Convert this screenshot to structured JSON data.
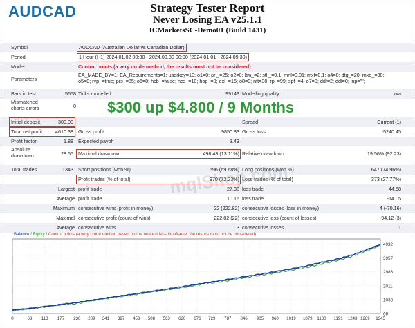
{
  "header": {
    "symbol_logo": "AUDCAD",
    "title": "Strategy Tester Report",
    "ea_name": "Never Losing EA v25.1.1",
    "server": "ICMarketsSC-Demo01 (Build 1431)"
  },
  "settings": {
    "symbol_label": "Symbol",
    "symbol_value": "AUDCAD (Australian Dollar vs Canadian Dollar)",
    "period_label": "Period",
    "period_value": "1 Hour (H1) 2024.01.02 00:00 - 2024.09.30 00:00 (2024.01.01 - 2024.09.30)",
    "model_label": "Model",
    "model_value": "Control points (a very crude method, the results must not be considered)",
    "parameters_label": "Parameters",
    "parameters_line1": "EA_MADE_BY=1; EA_Requirements=1; userkey=10; o1=0; pri_=25; o2=0; ltm_=2; stll_=0.1; mnl=0.01; mxl=0.1; o4=0; dtg_=20; mxo_=30;",
    "parameters_line2": "o5=0; rvp_=true; prs_=85; o6=0; hcb_=false; hcs_=10; hop_=0; exl_=15; o8=0; nft=30; rp_=99; spf_=4; o7=0; ddf=2; ddl=0; inp=\"\";"
  },
  "bars": {
    "bars_label": "Bars in test",
    "bars_value": "5658",
    "ticks_label": "Ticks modelled",
    "ticks_value": "99143",
    "quality_label": "Modelling quality",
    "quality_value": "n/a",
    "mismatched_label1": "Mismatched",
    "mismatched_label2": "charts errors",
    "mismatched_value": "0"
  },
  "headline": "$300 up $4.800 / 9 Months",
  "results": {
    "initial_deposit_label": "Initial deposit",
    "initial_deposit_value": "300.00",
    "spread_label": "Spread",
    "spread_value": "Current (1)",
    "total_net_profit_label": "Total net profit",
    "total_net_profit_value": "4610.38",
    "gross_profit_label": "Gross profit",
    "gross_profit_value": "9850.83",
    "gross_loss_label": "Gross loss",
    "gross_loss_value": "-5240.45",
    "profit_factor_label": "Profit factor",
    "profit_factor_value": "1.88",
    "expected_payoff_label": "Expected payoff",
    "expected_payoff_value": "3.43",
    "absolute_dd_label1": "Absolute",
    "absolute_dd_label2": "drawdown",
    "absolute_dd_value": "28.55",
    "maximal_dd_label": "Maximal drawdown",
    "maximal_dd_value": "498.43 (13.11%)",
    "relative_dd_label": "Relative drawdown",
    "relative_dd_value": "19.56% (92.23)",
    "total_trades_label": "Total trades",
    "total_trades_value": "1343",
    "short_label": "Short positions (won %)",
    "short_value": "696 (69.68%)",
    "long_label": "Long positions (won %)",
    "long_value": "647 (74.96%)",
    "profit_trades_label": "Profit trades (% of total)",
    "profit_trades_value": "970 (72.23%)",
    "loss_trades_label": "Loss trades (% of total)",
    "loss_trades_value": "373 (27.77%)",
    "largest_label": "Largest",
    "largest_profit_label": "profit trade",
    "largest_profit_value": "27.38",
    "largest_loss_label": "loss trade",
    "largest_loss_value": "-44.58",
    "average_label": "Average",
    "average_profit_label": "profit trade",
    "average_profit_value": "10.16",
    "average_loss_label": "loss trade",
    "average_loss_value": "-14.05",
    "maximum_label": "Maximum",
    "max_cons_wins_label": "consecutive wins (profit in money)",
    "max_cons_wins_value": "22 (222.82)",
    "max_cons_losses_label": "consecutive losses (loss in money)",
    "max_cons_losses_value": "4 (-70.16)",
    "maximal_label": "Maximal",
    "maximal_cons_profit_label": "consecutive profit (count of wins)",
    "maximal_cons_profit_value": "222.82 (22)",
    "maximal_cons_loss_label": "consecutive loss (count of losses)",
    "maximal_cons_loss_value": "-94.12 (3)",
    "avg_label": "Average",
    "avg_cons_wins_label": "consecutive wins",
    "avg_cons_wins_value": "3",
    "avg_cons_losses_label": "consecutive losses",
    "avg_cons_losses_value": "1"
  },
  "watermark": "mqlShop.com",
  "legend": {
    "balance": "Balance",
    "equity": "Equity",
    "control": "Control points (a very crude method based on the nearest less timeframe, the results must not be considered)"
  },
  "colors": {
    "balance": "#1f3fa0",
    "equity": "#2aa02a",
    "highlight_box": "#c0392b",
    "headline": "#2e9b3a",
    "logo": "#1b6fa8"
  },
  "chart_data": {
    "type": "line",
    "xlabel": "",
    "ylabel": "",
    "x_ticks": [
      "0",
      "63",
      "118",
      "177",
      "236",
      "289",
      "341",
      "397",
      "453",
      "508",
      "563",
      "620",
      "676",
      "729",
      "787",
      "846",
      "905",
      "960",
      "1019",
      "1079",
      "1130",
      "1191",
      "1243",
      "1289",
      "1345"
    ],
    "y_ticks": [
      "4932",
      "3957",
      "2986",
      "2011",
      "1038",
      "66"
    ],
    "ylim": [
      66,
      5300
    ],
    "xlim": [
      0,
      1345
    ],
    "series": [
      {
        "name": "Balance",
        "x": [
          0,
          63,
          118,
          177,
          236,
          289,
          341,
          397,
          453,
          508,
          563,
          620,
          676,
          729,
          787,
          846,
          905,
          960,
          1019,
          1079,
          1130,
          1191,
          1243,
          1289,
          1345
        ],
        "y": [
          300,
          420,
          560,
          700,
          840,
          990,
          1150,
          1300,
          1460,
          1620,
          1780,
          1950,
          2120,
          2280,
          2460,
          2640,
          2820,
          3000,
          3200,
          3420,
          3660,
          3900,
          4180,
          4500,
          4910
        ]
      },
      {
        "name": "Equity",
        "x": [
          0,
          63,
          118,
          177,
          236,
          289,
          341,
          397,
          453,
          508,
          563,
          620,
          676,
          729,
          787,
          846,
          905,
          960,
          1019,
          1079,
          1130,
          1191,
          1243,
          1289,
          1345
        ],
        "y": [
          300,
          400,
          540,
          680,
          780,
          960,
          1120,
          1270,
          1420,
          1590,
          1740,
          1900,
          2080,
          2220,
          2380,
          2590,
          2760,
          2920,
          3120,
          3320,
          3560,
          3820,
          4100,
          4420,
          4880
        ]
      }
    ]
  }
}
